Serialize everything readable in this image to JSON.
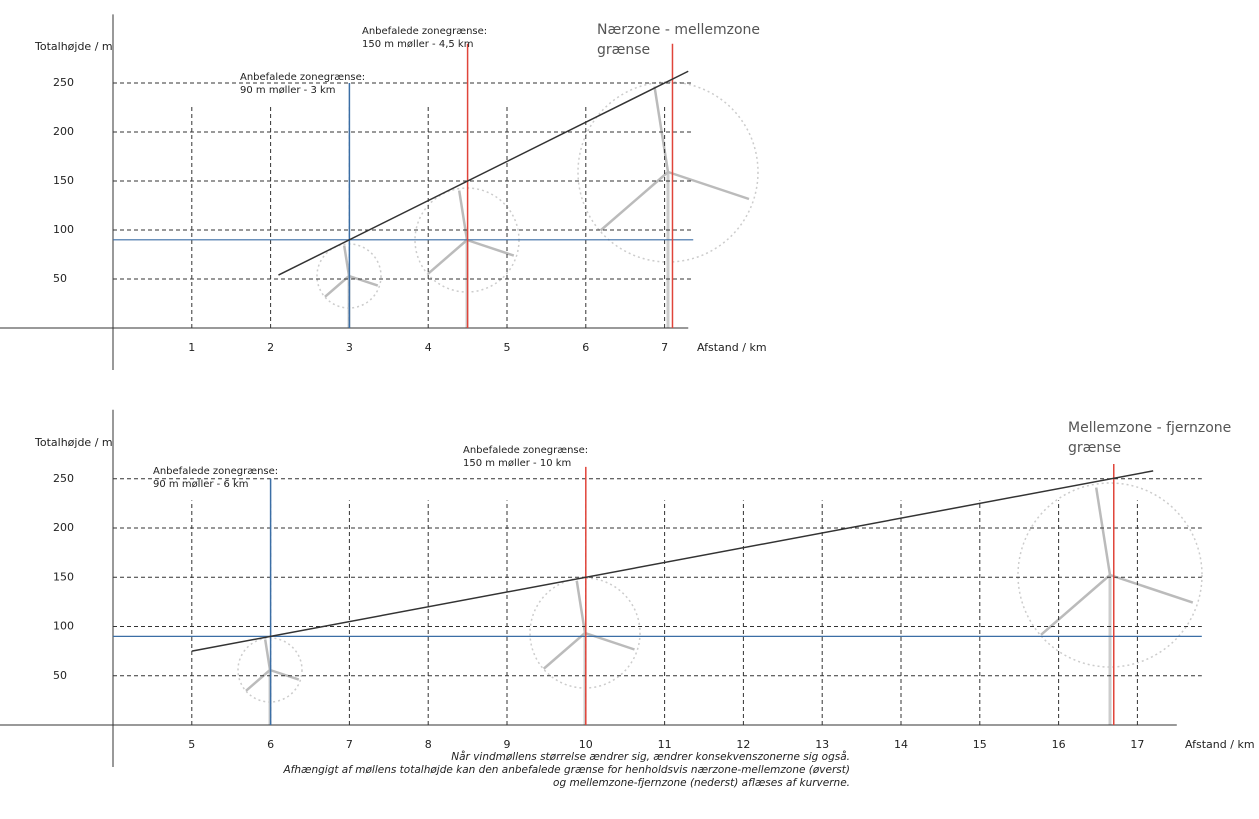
{
  "chart_data": [
    {
      "type": "line",
      "y_label": "Totalhøjde / m",
      "x_label": "Afstand / km",
      "xlim": [
        0,
        7.3
      ],
      "ylim": [
        0,
        320
      ],
      "xticks": [
        1,
        2,
        3,
        4,
        5,
        6,
        7
      ],
      "yticks": [
        50,
        100,
        150,
        200,
        250
      ],
      "grid": true,
      "series": [
        {
          "color": "#333333",
          "x": [
            2.1,
            7.3
          ],
          "values": [
            54,
            262
          ]
        }
      ],
      "vlines": [
        {
          "x": 3,
          "top": 250,
          "color": "#3b6ea5"
        },
        {
          "x": 4.5,
          "top": 290,
          "color": "#e0443a"
        },
        {
          "x": 7.1,
          "top": 290,
          "color": "#e0443a"
        }
      ],
      "hlines": [
        {
          "y": 90,
          "color": "#3b6ea5"
        }
      ],
      "annotations": [
        [
          "Anbefalede zonegrænse:",
          "90 m møller - 3 km"
        ],
        [
          "Anbefalede zonegrænse:",
          "150 m møller - 4,5 km"
        ],
        [
          "Nærzone - mellemzone",
          "grænse"
        ]
      ]
    },
    {
      "type": "line",
      "y_label": "Totalhøjde / m",
      "x_label": "Afstand / km",
      "xlim": [
        4,
        17.5
      ],
      "ylim": [
        0,
        320
      ],
      "xticks": [
        5,
        6,
        7,
        8,
        9,
        10,
        11,
        12,
        13,
        14,
        15,
        16,
        17
      ],
      "yticks": [
        50,
        100,
        150,
        200,
        250
      ],
      "grid": true,
      "series": [
        {
          "color": "#333333",
          "x": [
            5,
            17.2
          ],
          "values": [
            75,
            258
          ]
        }
      ],
      "vlines": [
        {
          "x": 6,
          "top": 250,
          "color": "#3b6ea5"
        },
        {
          "x": 10,
          "top": 262,
          "color": "#e0443a"
        },
        {
          "x": 16.7,
          "top": 265,
          "color": "#e0443a"
        }
      ],
      "hlines": [
        {
          "y": 90,
          "color": "#3b6ea5"
        }
      ],
      "annotations": [
        [
          "Anbefalede zonegrænse:",
          "90 m møller - 6 km"
        ],
        [
          "Anbefalede zonegrænse:",
          "150 m møller - 10 km"
        ],
        [
          "Mellemzone - fjernzone",
          "grænse"
        ]
      ]
    }
  ],
  "caption": [
    "Når vindmøllens størrelse ændrer sig, ændrer konsekvenszonerne sig også.",
    "Afhængigt af møllens totalhøjde kan den anbefalede grænse for henholdsvis nærzone-mellemzone (øverst)",
    "og mellemzone-fjernzone (nederst) aflæses af kurverne."
  ]
}
